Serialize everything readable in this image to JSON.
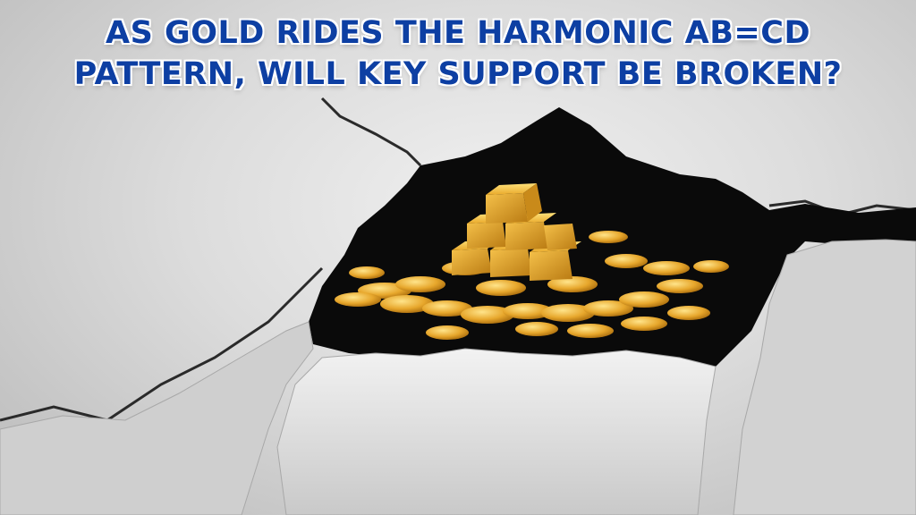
{
  "headline": {
    "line1": "AS GOLD RIDES THE HARMONIC AB=CD",
    "line2": "PATTERN, WILL KEY SUPPORT BE BROKEN?"
  },
  "colors": {
    "headline_text": "#0d3fa3",
    "headline_outline": "#ffffff",
    "paper": "#dcdcdc",
    "hole": "#0a0a0a",
    "gold": "#e3a82b"
  },
  "illustration": {
    "subject": "gold bars and coins inside a hole torn through grey paper",
    "icon": "gold-pile-icon"
  }
}
